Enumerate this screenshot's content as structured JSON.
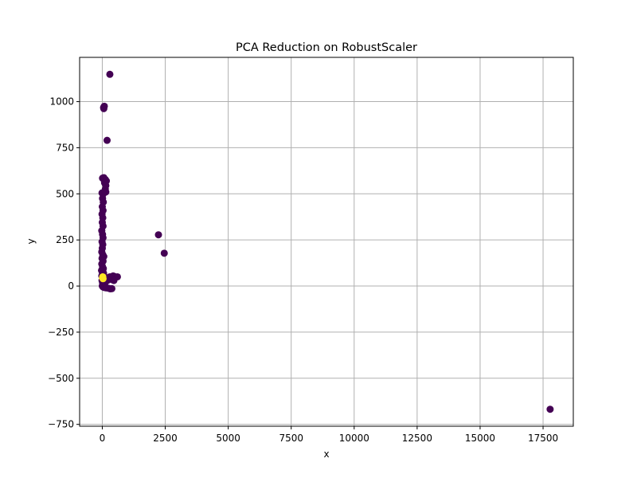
{
  "chart_data": {
    "type": "scatter",
    "title": "PCA Reduction on RobustScaler",
    "xlabel": "x",
    "ylabel": "y",
    "xlim": [
      -900,
      18700
    ],
    "ylim": [
      -760,
      1240
    ],
    "xticks": [
      0,
      2500,
      5000,
      7500,
      10000,
      12500,
      15000,
      17500
    ],
    "yticks": [
      -750,
      -500,
      -250,
      0,
      250,
      500,
      750,
      1000
    ],
    "xtick_labels": [
      "0",
      "2500",
      "5000",
      "7500",
      "10000",
      "12500",
      "15000",
      "17500"
    ],
    "ytick_labels": [
      "−750",
      "−500",
      "−250",
      "0",
      "250",
      "500",
      "750",
      "1000"
    ],
    "grid": true,
    "colors": {
      "class_0": "#440154",
      "class_1": "#fde725",
      "grid": "#b0b0b0",
      "axis": "#000000"
    },
    "series": [
      {
        "color": "#440154",
        "points": [
          [
            300,
            1148
          ],
          [
            50,
            968
          ],
          [
            80,
            975
          ],
          [
            60,
            962
          ],
          [
            190,
            790
          ],
          [
            10,
            585
          ],
          [
            60,
            588
          ],
          [
            120,
            578
          ],
          [
            160,
            570
          ],
          [
            90,
            560
          ],
          [
            140,
            545
          ],
          [
            120,
            525
          ],
          [
            140,
            510
          ],
          [
            -10,
            505
          ],
          [
            30,
            498
          ],
          [
            10,
            475
          ],
          [
            40,
            455
          ],
          [
            0,
            430
          ],
          [
            30,
            410
          ],
          [
            -10,
            390
          ],
          [
            20,
            370
          ],
          [
            0,
            345
          ],
          [
            30,
            325
          ],
          [
            -20,
            300
          ],
          [
            10,
            280
          ],
          [
            30,
            262
          ],
          [
            -10,
            240
          ],
          [
            20,
            225
          ],
          [
            0,
            205
          ],
          [
            -20,
            185
          ],
          [
            20,
            170
          ],
          [
            60,
            160
          ],
          [
            -10,
            150
          ],
          [
            30,
            135
          ],
          [
            -20,
            120
          ],
          [
            10,
            105
          ],
          [
            40,
            95
          ],
          [
            -30,
            85
          ],
          [
            0,
            75
          ],
          [
            50,
            70
          ],
          [
            20,
            60
          ],
          [
            -20,
            55
          ],
          [
            80,
            50
          ],
          [
            30,
            40
          ],
          [
            -10,
            30
          ],
          [
            60,
            25
          ],
          [
            10,
            18
          ],
          [
            100,
            15
          ],
          [
            40,
            8
          ],
          [
            0,
            0
          ],
          [
            30,
            -5
          ],
          [
            80,
            -8
          ],
          [
            150,
            -10
          ],
          [
            250,
            -12
          ],
          [
            320,
            -15
          ],
          [
            380,
            -14
          ],
          [
            250,
            45
          ],
          [
            300,
            50
          ],
          [
            350,
            40
          ],
          [
            430,
            55
          ],
          [
            480,
            52
          ],
          [
            520,
            48
          ],
          [
            600,
            50
          ],
          [
            150,
            35
          ],
          [
            200,
            30
          ],
          [
            380,
            35
          ],
          [
            460,
            30
          ],
          [
            2230,
            278
          ],
          [
            2460,
            178
          ],
          [
            17780,
            -668
          ]
        ]
      },
      {
        "color": "#fde725",
        "points": [
          [
            10,
            45
          ],
          [
            30,
            40
          ],
          [
            20,
            50
          ]
        ]
      }
    ]
  }
}
